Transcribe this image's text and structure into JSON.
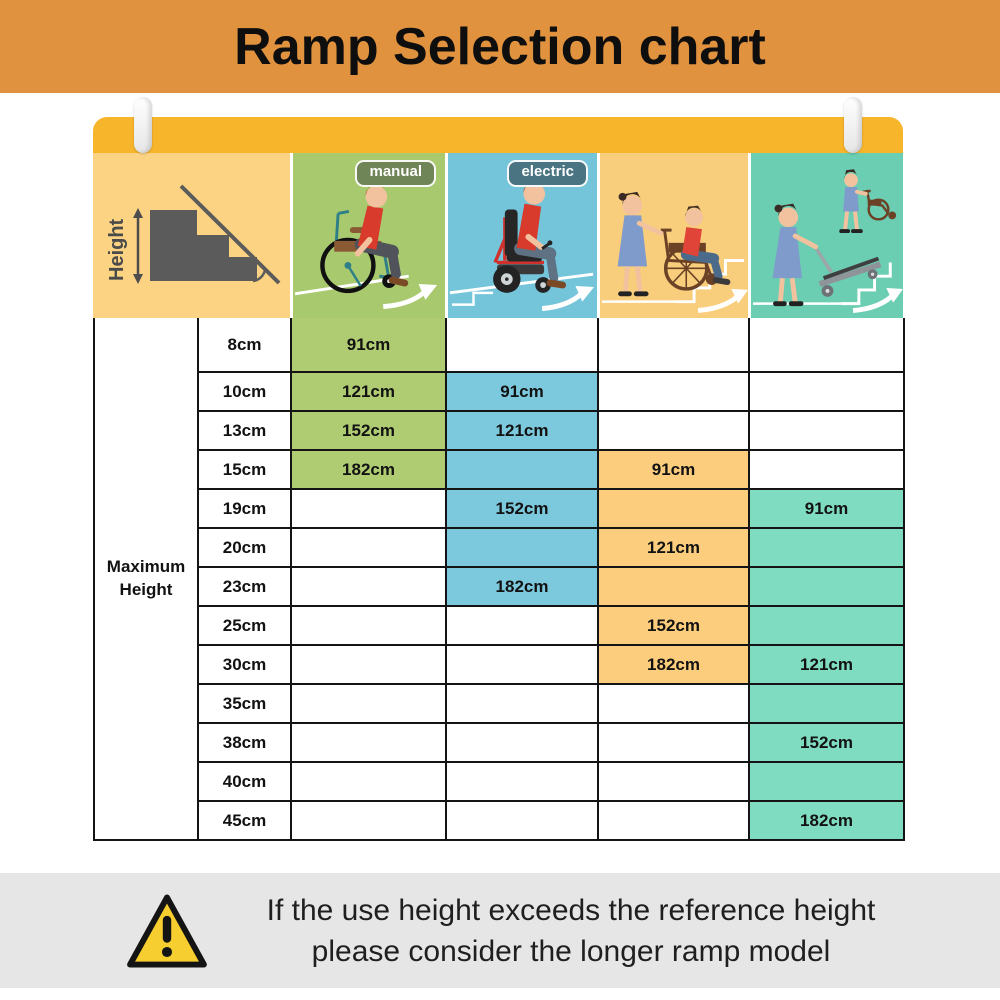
{
  "title": "Ramp Selection chart",
  "header": {
    "height_label": "Height",
    "manual_badge": "manual",
    "electric_badge": "electric"
  },
  "footer": {
    "line1": "If the use height exceeds the reference height",
    "line2": "please consider the longer ramp model"
  },
  "colors": {
    "banner_orange": "#E0923E",
    "yellow_bar": "#F7B52C",
    "panel_height_bg": "#FBD383",
    "panel_manual_bg": "#A8C96E",
    "panel_electric_bg": "#74C4DA",
    "panel_assisted_bg": "#F8CD7B",
    "panel_trolley_bg": "#6BCDB2",
    "cell_green": "#AFCC72",
    "cell_blue": "#7CC9DE",
    "cell_orange": "#FBCD7D",
    "cell_teal": "#7FDCC0",
    "badge_manual_bg": "#6F8457",
    "badge_electric_bg": "#4A7482",
    "grid_border": "#141414",
    "footer_gray": "#E6E6E6",
    "warning_yellow": "#F6CE2F"
  },
  "chart_data": {
    "type": "table",
    "title": "Ramp Selection chart",
    "row_header": "Maximum Height",
    "heights": [
      "8cm",
      "10cm",
      "13cm",
      "15cm",
      "19cm",
      "20cm",
      "23cm",
      "25cm",
      "30cm",
      "35cm",
      "38cm",
      "40cm",
      "45cm"
    ],
    "series": [
      {
        "id": "manual",
        "badge": "manual",
        "shaded_from": "8cm",
        "shaded_to": "15cm",
        "lengths": {
          "8cm": "91cm",
          "10cm": "121cm",
          "13cm": "152cm",
          "15cm": "182cm"
        }
      },
      {
        "id": "electric",
        "badge": "electric",
        "shaded_from": "10cm",
        "shaded_to": "23cm",
        "lengths": {
          "10cm": "91cm",
          "13cm": "121cm",
          "19cm": "152cm",
          "23cm": "182cm"
        }
      },
      {
        "id": "assisted",
        "badge": "",
        "shaded_from": "15cm",
        "shaded_to": "30cm",
        "lengths": {
          "15cm": "91cm",
          "20cm": "121cm",
          "25cm": "152cm",
          "30cm": "182cm"
        }
      },
      {
        "id": "trolley",
        "badge": "",
        "shaded_from": "19cm",
        "shaded_to": "45cm",
        "lengths": {
          "19cm": "91cm",
          "30cm": "121cm",
          "38cm": "152cm",
          "45cm": "182cm"
        }
      }
    ]
  }
}
